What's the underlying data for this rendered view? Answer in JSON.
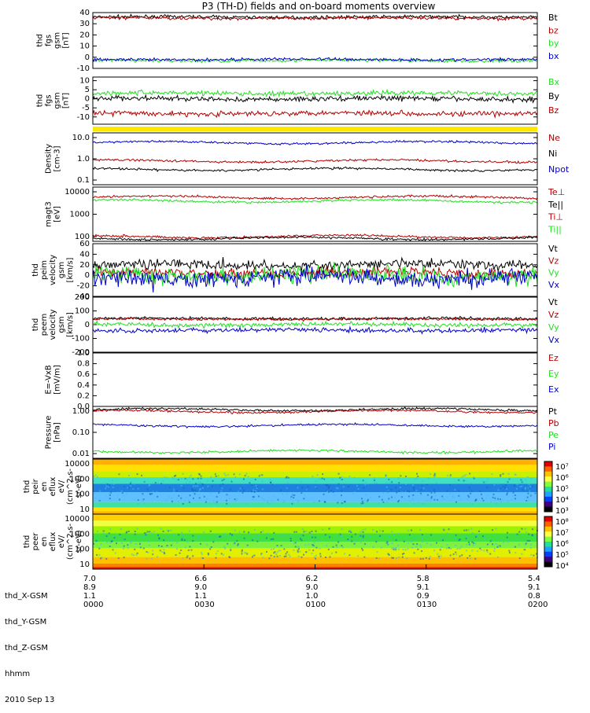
{
  "title": "P3 (TH-D) fields and on-board moments overview",
  "date": "2010 Sep 13",
  "colors": {
    "black": "#000000",
    "red": "#b40000",
    "brightred": "#e00000",
    "green": "#22e022",
    "blue": "#0000c8",
    "yellow": "#ffe800"
  },
  "chart_data": [
    {
      "id": "p1",
      "type": "line",
      "ylabel": [
        "thd",
        "fgs",
        "gsm",
        "[nT]"
      ],
      "yticks": [
        "40",
        "30",
        "20",
        "10",
        "0",
        "-10"
      ],
      "ylim": [
        -10,
        40
      ],
      "legend": [
        {
          "name": "Bt",
          "color": "#000000"
        },
        {
          "name": "bz",
          "color": "#b40000"
        },
        {
          "name": "by",
          "color": "#22e022"
        },
        {
          "name": "bx",
          "color": "#0000c8"
        }
      ],
      "series": [
        {
          "name": "Bt",
          "level": 36
        },
        {
          "name": "bz",
          "level": 35
        },
        {
          "name": "by",
          "level": -3
        },
        {
          "name": "bx",
          "level": -2
        }
      ]
    },
    {
      "id": "p2",
      "type": "line",
      "ylabel": [
        "thd",
        "fgs",
        "gsm",
        "[nT]"
      ],
      "yticks": [
        "10",
        "5",
        "0",
        "-5",
        "-10"
      ],
      "ylim": [
        -14,
        12
      ],
      "legend": [
        {
          "name": "Bx",
          "color": "#22e022"
        },
        {
          "name": "By",
          "color": "#000000"
        },
        {
          "name": "Bz",
          "color": "#b40000"
        }
      ],
      "series": [
        {
          "name": "Bx",
          "level": 3
        },
        {
          "name": "By",
          "level": 0
        },
        {
          "name": "Bz",
          "level": -8
        }
      ]
    },
    {
      "id": "p3",
      "type": "line",
      "scale": "log",
      "ylabel": [
        "Density",
        "[cm-3]"
      ],
      "yticks": [
        "10.0",
        "1.0",
        "0.1"
      ],
      "legend": [
        {
          "name": "Ne",
          "color": "#b40000"
        },
        {
          "name": "Ni",
          "color": "#000000"
        },
        {
          "name": "Npot",
          "color": "#0000c8"
        }
      ],
      "series": [
        {
          "name": "Npot",
          "level": 5
        },
        {
          "name": "Ne",
          "level": 0.8
        },
        {
          "name": "Ni",
          "level": 0.35
        }
      ]
    },
    {
      "id": "p4",
      "type": "line",
      "scale": "log",
      "ylabel": [
        "magt3",
        "[eV]"
      ],
      "yticks": [
        "10000",
        "1000",
        "100"
      ],
      "legend": [
        {
          "name": "Te⊥",
          "color": "#b40000"
        },
        {
          "name": "Te||",
          "color": "#000000"
        },
        {
          "name": "Ti⊥",
          "color": "#b40000"
        },
        {
          "name": "Ti||",
          "color": "#22e022"
        }
      ],
      "series": [
        {
          "name": "Ti⊥",
          "level": 5000
        },
        {
          "name": "Ti||",
          "level": 3500
        },
        {
          "name": "Te⊥",
          "level": 120
        },
        {
          "name": "Te||",
          "level": 100
        }
      ]
    },
    {
      "id": "p5",
      "type": "line",
      "ylabel": [
        "thd",
        "peim",
        "velocity",
        "gsm",
        "[km/s]"
      ],
      "yticks": [
        "60",
        "40",
        "20",
        "0",
        "-20",
        "-40"
      ],
      "ylim": [
        -40,
        60
      ],
      "legend": [
        {
          "name": "Vt",
          "color": "#000000"
        },
        {
          "name": "Vz",
          "color": "#b40000"
        },
        {
          "name": "Vy",
          "color": "#22e022"
        },
        {
          "name": "Vx",
          "color": "#0000c8"
        }
      ],
      "series": [
        {
          "name": "Vt",
          "level": 20
        },
        {
          "name": "Vz",
          "level": 5
        },
        {
          "name": "Vy",
          "level": 0
        },
        {
          "name": "Vx",
          "level": -5
        }
      ]
    },
    {
      "id": "p6",
      "type": "line",
      "ylabel": [
        "thd",
        "peem",
        "velocity",
        "gsm",
        "[km/s]"
      ],
      "yticks": [
        "200",
        "100",
        "0",
        "-100",
        "-200"
      ],
      "ylim": [
        -200,
        200
      ],
      "legend": [
        {
          "name": "Vt",
          "color": "#000000"
        },
        {
          "name": "Vz",
          "color": "#b40000"
        },
        {
          "name": "Vy",
          "color": "#22e022"
        },
        {
          "name": "Vx",
          "color": "#0000c8"
        }
      ],
      "series": [
        {
          "name": "Vt",
          "level": 45
        },
        {
          "name": "Vz",
          "level": 40
        },
        {
          "name": "Vy",
          "level": 0
        },
        {
          "name": "Vx",
          "level": -40
        }
      ]
    },
    {
      "id": "p7",
      "type": "line",
      "ylabel": [
        "E=-VxB",
        "[mV/m]"
      ],
      "yticks": [
        "1.0",
        "0.8",
        "0.6",
        "0.4",
        "0.2",
        "0.0"
      ],
      "ylim": [
        0,
        1
      ],
      "legend": [
        {
          "name": "Ez",
          "color": "#b40000"
        },
        {
          "name": "Ey",
          "color": "#22e022"
        },
        {
          "name": "Ex",
          "color": "#0000c8"
        }
      ],
      "series": []
    },
    {
      "id": "p8",
      "type": "line",
      "scale": "log",
      "ylabel": [
        "Pressure",
        "[nPa]"
      ],
      "yticks": [
        "1.00",
        "0.10",
        "0.01"
      ],
      "legend": [
        {
          "name": "Pt",
          "color": "#000000"
        },
        {
          "name": "Pb",
          "color": "#b40000"
        },
        {
          "name": "Pe",
          "color": "#22e022"
        },
        {
          "name": "Pi",
          "color": "#0000c8"
        }
      ],
      "series": [
        {
          "name": "Pt",
          "level": 0.95
        },
        {
          "name": "Pb",
          "level": 0.8
        },
        {
          "name": "Pi",
          "level": 0.2
        },
        {
          "name": "Pe",
          "level": 0.015
        }
      ]
    },
    {
      "id": "p9",
      "type": "heatmap",
      "scale": "log",
      "ylabel": [
        "thd",
        "peir",
        "en",
        "eflux",
        "eV/",
        "(cm^2-s-",
        "sr-eV)"
      ],
      "yticks": [
        "10000",
        "1000",
        "100",
        "10"
      ],
      "colorbar": [
        "10⁷",
        "10⁶",
        "10⁵",
        "10⁴",
        "10³"
      ]
    },
    {
      "id": "p10",
      "type": "heatmap",
      "scale": "log",
      "ylabel": [
        "thd",
        "peer",
        "en",
        "eflux",
        "eV/",
        "(cm^2-s-",
        "sr-eV)"
      ],
      "yticks": [
        "10000",
        "1000",
        "100",
        "10"
      ],
      "colorbar": [
        "10⁸",
        "10⁷",
        "10⁶",
        "10⁵",
        "10⁴"
      ]
    }
  ],
  "xaxis": {
    "rows": [
      {
        "label": "thd_X-GSM",
        "values": [
          "7.0",
          "6.6",
          "6.2",
          "5.8",
          "5.4"
        ]
      },
      {
        "label": "thd_Y-GSM",
        "values": [
          "8.9",
          "9.0",
          "9.0",
          "9.1",
          "9.1"
        ]
      },
      {
        "label": "thd_Z-GSM",
        "values": [
          "1.1",
          "1.1",
          "1.0",
          "0.9",
          "0.8"
        ]
      },
      {
        "label": "hhmm",
        "values": [
          "0000",
          "0030",
          "0100",
          "0130",
          "0200"
        ]
      }
    ]
  }
}
